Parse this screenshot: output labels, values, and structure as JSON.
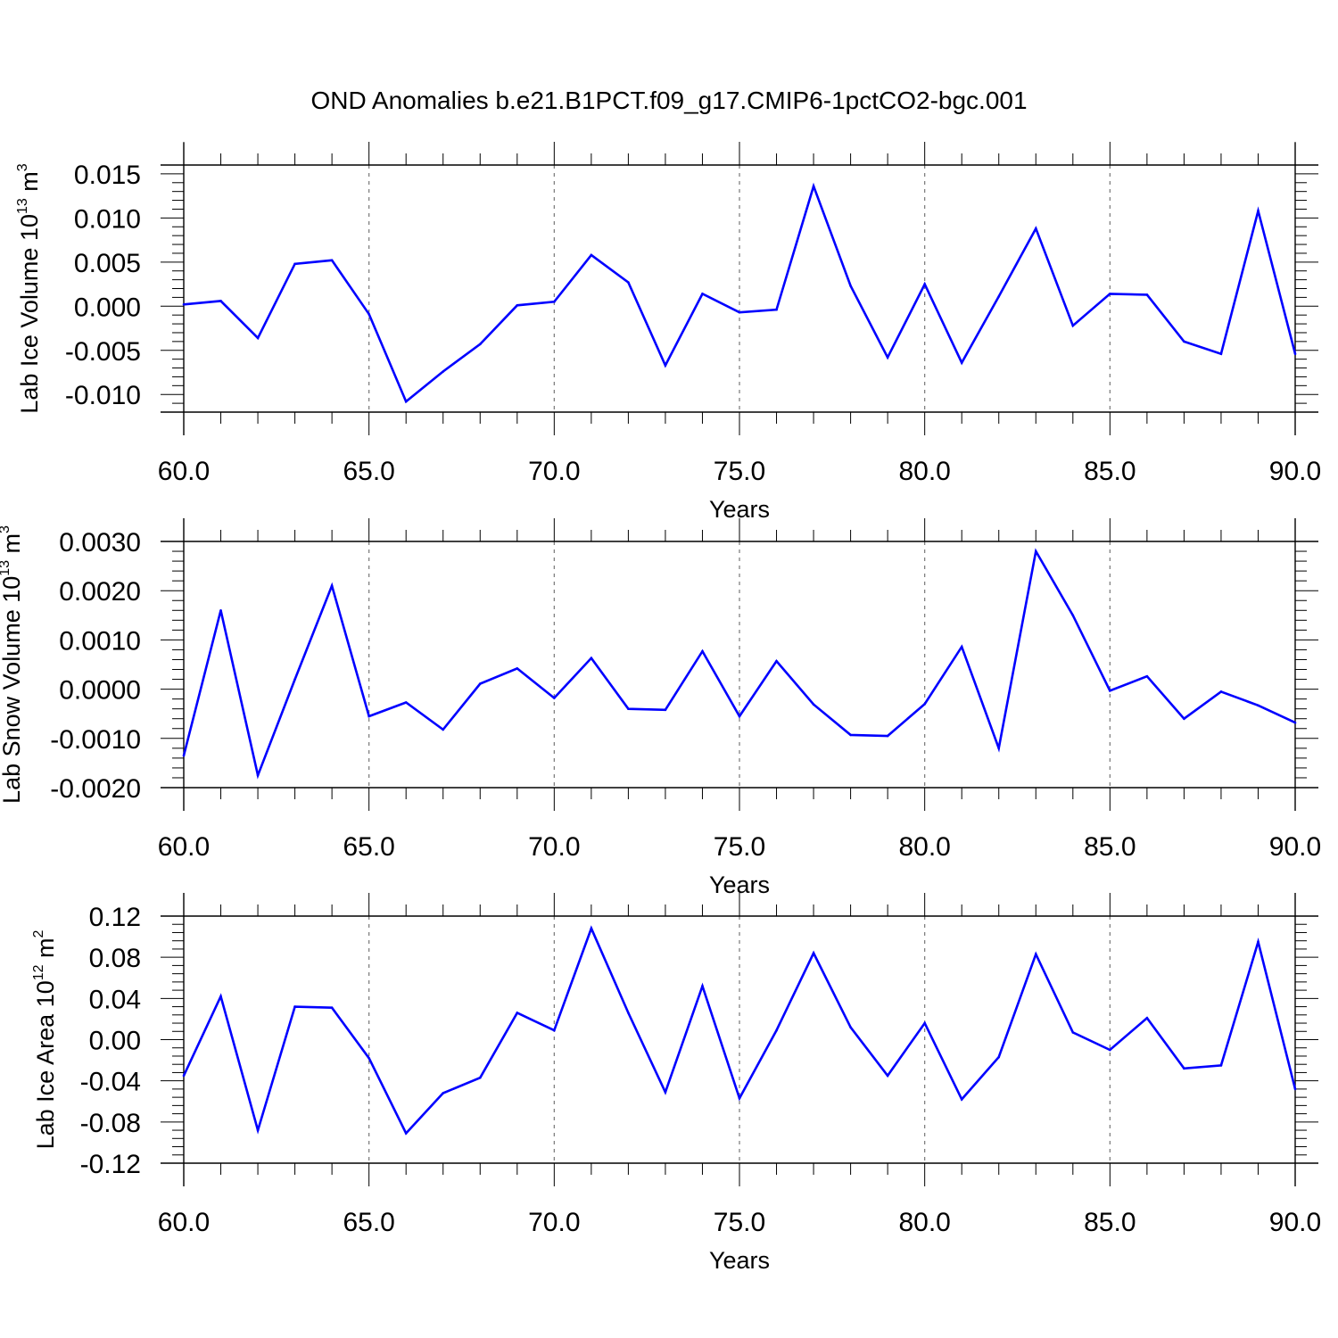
{
  "title": "OND Anomalies b.e21.B1PCT.f09_g17.CMIP6-1pctCO2-bgc.001",
  "colors": {
    "line": "#0000ff",
    "axis": "#000000",
    "grid": "#777777"
  },
  "chart_data": [
    {
      "type": "line",
      "ylabel": {
        "main": "Lab Ice Volume 10",
        "sup": "13",
        "unit": " m",
        "unit_sup": "3"
      },
      "xlabel": "Years",
      "xlim": [
        60,
        90
      ],
      "ylim": [
        -0.012,
        0.016
      ],
      "x_ticks": [
        "60.0",
        "65.0",
        "70.0",
        "75.0",
        "80.0",
        "85.0",
        "90.0"
      ],
      "y_ticks": [
        {
          "v": 0.015,
          "label": "0.015"
        },
        {
          "v": 0.01,
          "label": "0.010"
        },
        {
          "v": 0.005,
          "label": "0.005"
        },
        {
          "v": 0.0,
          "label": "0.000"
        },
        {
          "v": -0.005,
          "label": "-0.005"
        },
        {
          "v": -0.01,
          "label": "-0.010"
        }
      ],
      "x": [
        60,
        61,
        62,
        63,
        64,
        65,
        66,
        67,
        68,
        69,
        70,
        71,
        72,
        73,
        74,
        75,
        76,
        77,
        78,
        79,
        80,
        81,
        82,
        83,
        84,
        85,
        86,
        87,
        88,
        89,
        90
      ],
      "y": [
        0.0002,
        0.0006,
        -0.0036,
        0.0048,
        0.0052,
        -0.0009,
        -0.0108,
        -0.0074,
        -0.0043,
        0.0001,
        0.0005,
        0.0058,
        0.0027,
        -0.0067,
        0.0014,
        -0.0007,
        -0.0004,
        0.0136,
        0.0023,
        -0.0058,
        0.0025,
        -0.0064,
        0.0011,
        0.0088,
        -0.0022,
        0.0014,
        0.0013,
        -0.004,
        -0.0054,
        0.0108,
        -0.0054
      ]
    },
    {
      "type": "line",
      "ylabel": {
        "main": "Lab Snow Volume 10",
        "sup": "13",
        "unit": " m",
        "unit_sup": "3"
      },
      "xlabel": "Years",
      "xlim": [
        60,
        90
      ],
      "ylim": [
        -0.002,
        0.003
      ],
      "x_ticks": [
        "60.0",
        "65.0",
        "70.0",
        "75.0",
        "80.0",
        "85.0",
        "90.0"
      ],
      "y_ticks": [
        {
          "v": 0.003,
          "label": "0.0030"
        },
        {
          "v": 0.002,
          "label": "0.0020"
        },
        {
          "v": 0.001,
          "label": "0.0010"
        },
        {
          "v": 0.0,
          "label": "0.0000"
        },
        {
          "v": -0.001,
          "label": "-0.0010"
        },
        {
          "v": -0.002,
          "label": "-0.0020"
        }
      ],
      "x": [
        60,
        61,
        62,
        63,
        64,
        65,
        66,
        67,
        68,
        69,
        70,
        71,
        72,
        73,
        74,
        75,
        76,
        77,
        78,
        79,
        80,
        81,
        82,
        83,
        84,
        85,
        86,
        87,
        88,
        89,
        90
      ],
      "y": [
        -0.00135,
        0.0016,
        -0.00175,
        0.0002,
        0.0021,
        -0.00055,
        -0.00027,
        -0.00082,
        0.00011,
        0.00042,
        -0.00018,
        0.00063,
        -0.0004,
        -0.00042,
        0.00077,
        -0.00055,
        0.00057,
        -0.00031,
        -0.00093,
        -0.00095,
        -0.0003,
        0.00086,
        -0.0012,
        0.0028,
        0.0015,
        -3e-05,
        0.00026,
        -0.0006,
        -5e-05,
        -0.00033,
        -0.00068
      ]
    },
    {
      "type": "line",
      "ylabel": {
        "main": "Lab Ice Area 10",
        "sup": "12",
        "unit": " m",
        "unit_sup": "2"
      },
      "xlabel": "Years",
      "xlim": [
        60,
        90
      ],
      "ylim": [
        -0.12,
        0.12
      ],
      "x_ticks": [
        "60.0",
        "65.0",
        "70.0",
        "75.0",
        "80.0",
        "85.0",
        "90.0"
      ],
      "y_ticks": [
        {
          "v": 0.12,
          "label": "0.12"
        },
        {
          "v": 0.08,
          "label": "0.08"
        },
        {
          "v": 0.04,
          "label": "0.04"
        },
        {
          "v": 0.0,
          "label": "0.00"
        },
        {
          "v": -0.04,
          "label": "-0.04"
        },
        {
          "v": -0.08,
          "label": "-0.08"
        },
        {
          "v": -0.12,
          "label": "-0.12"
        }
      ],
      "x": [
        60,
        61,
        62,
        63,
        64,
        65,
        66,
        67,
        68,
        69,
        70,
        71,
        72,
        73,
        74,
        75,
        76,
        77,
        78,
        79,
        80,
        81,
        82,
        83,
        84,
        85,
        86,
        87,
        88,
        89,
        90
      ],
      "y": [
        -0.035,
        0.042,
        -0.088,
        0.032,
        0.031,
        -0.018,
        -0.091,
        -0.052,
        -0.037,
        0.026,
        0.009,
        0.108,
        0.026,
        -0.051,
        0.052,
        -0.057,
        0.009,
        0.084,
        0.012,
        -0.035,
        0.016,
        -0.058,
        -0.017,
        0.083,
        0.007,
        -0.01,
        0.021,
        -0.028,
        -0.025,
        0.095,
        -0.048
      ]
    }
  ]
}
